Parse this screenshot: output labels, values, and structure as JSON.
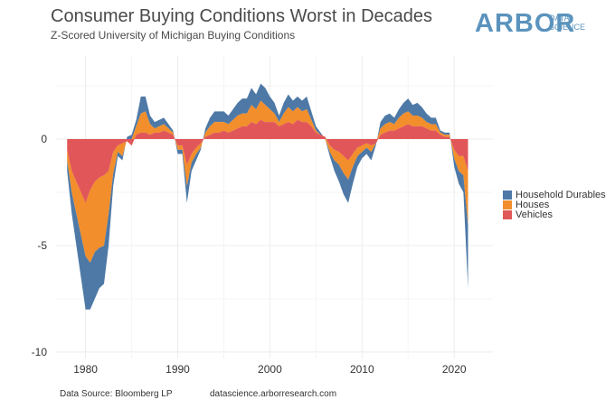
{
  "title": "Consumer Buying Conditions Worst in Decades",
  "subtitle": "Z-Scored University of Michigan Buying Conditions",
  "logo": {
    "word": "ARBOR",
    "sub1": "DATA",
    "sub2": "SCIENCE"
  },
  "footer": {
    "source": "Data Source: Bloomberg LP",
    "url": "datascience.arborresearch.com"
  },
  "colors": {
    "durables": "#4e79a7",
    "houses": "#f28e2b",
    "vehicles": "#e15759"
  },
  "chart_data": {
    "type": "area",
    "stacked": true,
    "title": "Consumer Buying Conditions Worst in Decades",
    "xlabel": "",
    "ylabel": "",
    "xlim": [
      1976.8,
      2024.2
    ],
    "ylim": [
      -10.3,
      3.9
    ],
    "x_ticks": [
      1980,
      1990,
      2000,
      2010,
      2020
    ],
    "y_ticks": [
      0,
      -5,
      -10
    ],
    "legend_position": "right",
    "x": [
      1978,
      1978.5,
      1979,
      1979.5,
      1980,
      1980.5,
      1981,
      1981.5,
      1982,
      1982.5,
      1983,
      1983.5,
      1984,
      1984.5,
      1985,
      1985.5,
      1986,
      1986.5,
      1987,
      1987.5,
      1988,
      1988.5,
      1989,
      1989.5,
      1990,
      1990.5,
      1991,
      1991.5,
      1992,
      1992.5,
      1993,
      1993.5,
      1994,
      1994.5,
      1995,
      1995.5,
      1996,
      1996.5,
      1997,
      1997.5,
      1998,
      1998.5,
      1999,
      1999.5,
      2000,
      2000.5,
      2001,
      2001.5,
      2002,
      2002.5,
      2003,
      2003.5,
      2004,
      2004.5,
      2005,
      2005.5,
      2006,
      2006.5,
      2007,
      2007.5,
      2008,
      2008.5,
      2009,
      2009.5,
      2010,
      2010.5,
      2011,
      2011.5,
      2012,
      2012.5,
      2013,
      2013.5,
      2014,
      2014.5,
      2015,
      2015.5,
      2016,
      2016.5,
      2017,
      2017.5,
      2018,
      2018.5,
      2019,
      2019.5,
      2020,
      2020.5,
      2021,
      2021.5
    ],
    "series": [
      {
        "name": "Vehicles",
        "values": [
          -0.5,
          -1.5,
          -2.0,
          -2.5,
          -3.0,
          -2.4,
          -2.0,
          -1.8,
          -1.7,
          -1.5,
          -0.6,
          -0.3,
          -0.2,
          -0.1,
          -0.3,
          0.2,
          0.3,
          0.3,
          0.2,
          0.3,
          0.3,
          0.4,
          0.3,
          0.2,
          -0.3,
          -0.3,
          -1.2,
          -0.7,
          -0.4,
          -0.2,
          0.1,
          0.2,
          0.3,
          0.3,
          0.4,
          0.3,
          0.4,
          0.5,
          0.6,
          0.6,
          0.8,
          0.7,
          0.9,
          0.8,
          0.8,
          0.8,
          0.6,
          0.7,
          0.8,
          0.7,
          0.9,
          0.8,
          0.8,
          0.6,
          0.3,
          0.2,
          0.1,
          -0.3,
          -0.5,
          -0.6,
          -0.8,
          -1.0,
          -0.7,
          -0.4,
          -0.3,
          -0.2,
          -0.3,
          -0.2,
          0.2,
          0.3,
          0.4,
          0.4,
          0.5,
          0.6,
          0.7,
          0.6,
          0.6,
          0.6,
          0.5,
          0.4,
          0.4,
          0.2,
          0.1,
          0.1,
          -0.5,
          -0.8,
          -0.8,
          -1.5
        ]
      },
      {
        "name": "Houses",
        "values": [
          -0.5,
          -1.0,
          -1.5,
          -2.0,
          -2.5,
          -3.4,
          -3.3,
          -3.3,
          -3.3,
          -2.0,
          -1.0,
          -0.3,
          -0.6,
          0.1,
          0.3,
          0.4,
          0.9,
          1.0,
          0.5,
          0.2,
          0.3,
          0.3,
          0.2,
          0.1,
          -0.2,
          -0.2,
          -1.0,
          -0.4,
          -0.3,
          -0.2,
          0.2,
          0.4,
          0.5,
          0.5,
          0.4,
          0.4,
          0.5,
          0.6,
          0.6,
          0.6,
          0.8,
          0.7,
          0.9,
          0.8,
          0.6,
          0.4,
          0.2,
          0.5,
          0.7,
          0.6,
          0.6,
          0.5,
          0.6,
          0.3,
          0.1,
          0.0,
          -0.1,
          -0.3,
          -0.5,
          -0.6,
          -0.8,
          -0.9,
          -0.6,
          -0.4,
          -0.3,
          -0.2,
          -0.3,
          0.0,
          0.3,
          0.4,
          0.4,
          0.3,
          0.5,
          0.6,
          0.6,
          0.5,
          0.5,
          0.4,
          0.3,
          0.3,
          0.3,
          0.1,
          0.1,
          0.1,
          -0.4,
          -0.7,
          -0.9,
          -2.5
        ]
      },
      {
        "name": "Household Durables",
        "values": [
          -0.5,
          -1.0,
          -1.5,
          -2.0,
          -2.5,
          -2.2,
          -2.2,
          -1.9,
          -1.8,
          -1.5,
          -0.6,
          -0.2,
          -0.2,
          0.1,
          0.2,
          0.3,
          0.8,
          0.7,
          0.4,
          0.3,
          0.3,
          0.3,
          0.2,
          0.1,
          -0.2,
          -0.2,
          -0.8,
          -0.4,
          -0.3,
          -0.1,
          0.2,
          0.4,
          0.5,
          0.5,
          0.5,
          0.4,
          0.5,
          0.6,
          0.7,
          0.7,
          0.8,
          0.7,
          0.8,
          0.8,
          0.6,
          0.5,
          0.3,
          0.5,
          0.6,
          0.5,
          0.5,
          0.5,
          0.6,
          0.4,
          0.2,
          0.1,
          0.0,
          -0.2,
          -0.5,
          -0.8,
          -1.0,
          -1.1,
          -0.8,
          -0.5,
          -0.3,
          -0.3,
          -0.4,
          -0.1,
          0.3,
          0.4,
          0.4,
          0.3,
          0.4,
          0.5,
          0.6,
          0.5,
          0.6,
          0.5,
          0.4,
          0.3,
          0.3,
          0.1,
          0.1,
          0.1,
          -0.4,
          -0.6,
          -0.8,
          -3.0
        ]
      }
    ]
  }
}
